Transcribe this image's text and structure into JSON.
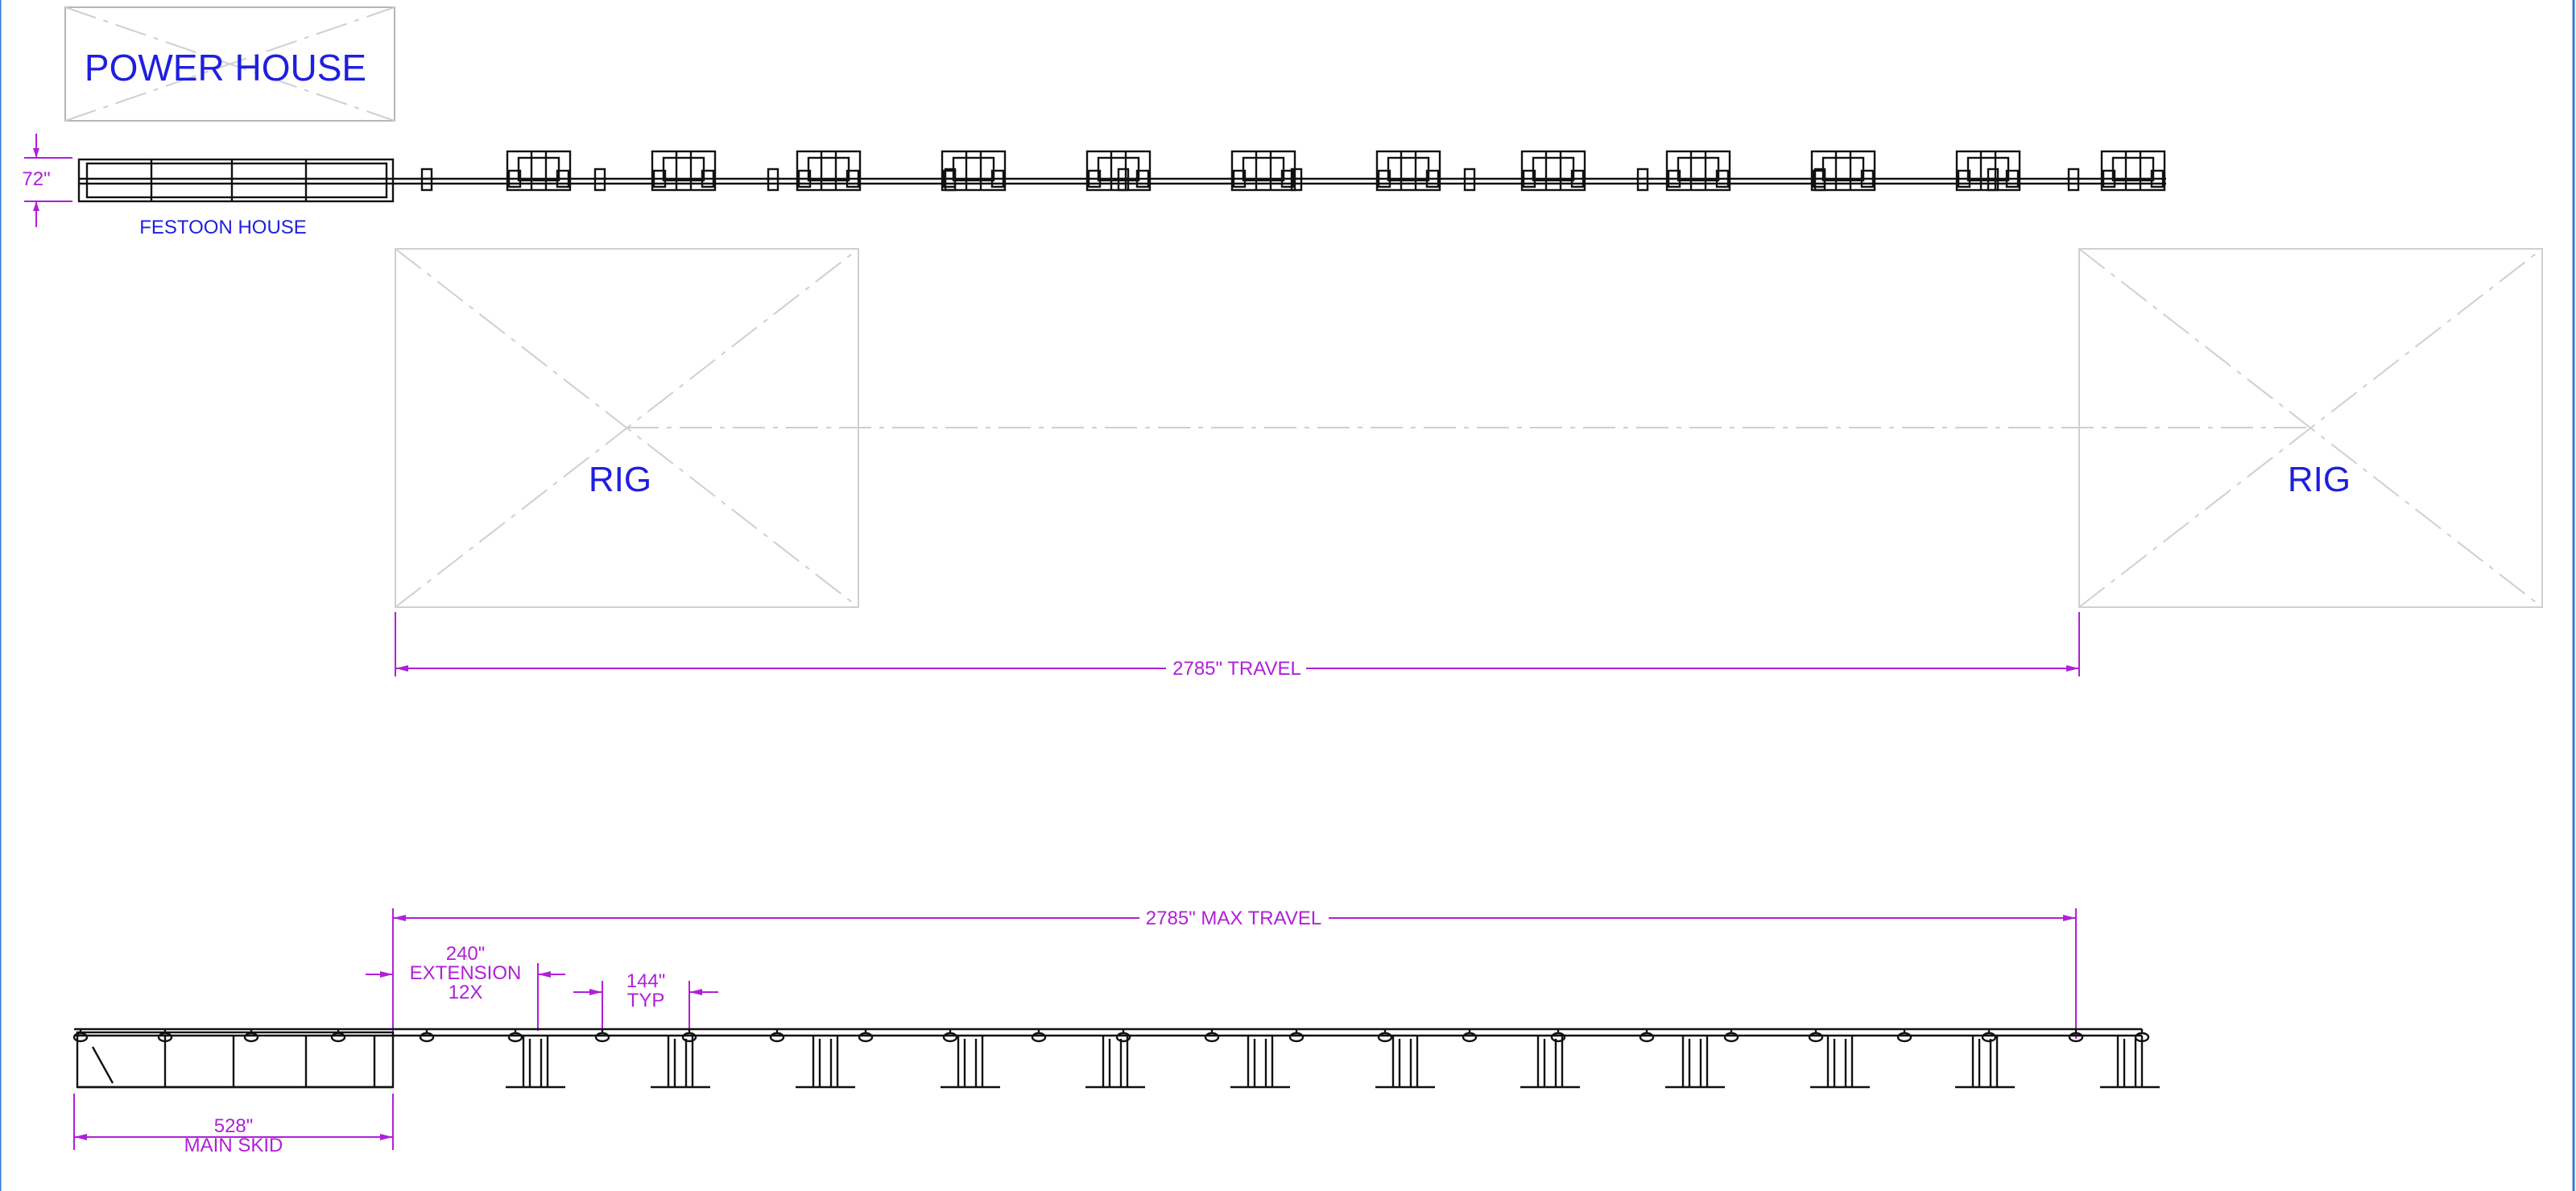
{
  "labels": {
    "power_house": "POWER HOUSE",
    "festoon_house": "FESTOON HOUSE",
    "rig_left": "RIG",
    "rig_right": "RIG"
  },
  "dimensions": {
    "height_72": "72\"",
    "travel": "2785\" TRAVEL",
    "max_travel": "2785\" MAX TRAVEL",
    "extension_value": "240\"",
    "extension_label": "EXTENSION",
    "extension_count": "12X",
    "typ_value": "144\"",
    "typ_label": "TYP",
    "main_skid_value": "528\"",
    "main_skid_label": "MAIN SKID"
  },
  "colors": {
    "annotation_text": "#1f1fe0",
    "dimension": "#b01fd8",
    "structure": "#111111",
    "outline": "#c8c8c8"
  }
}
